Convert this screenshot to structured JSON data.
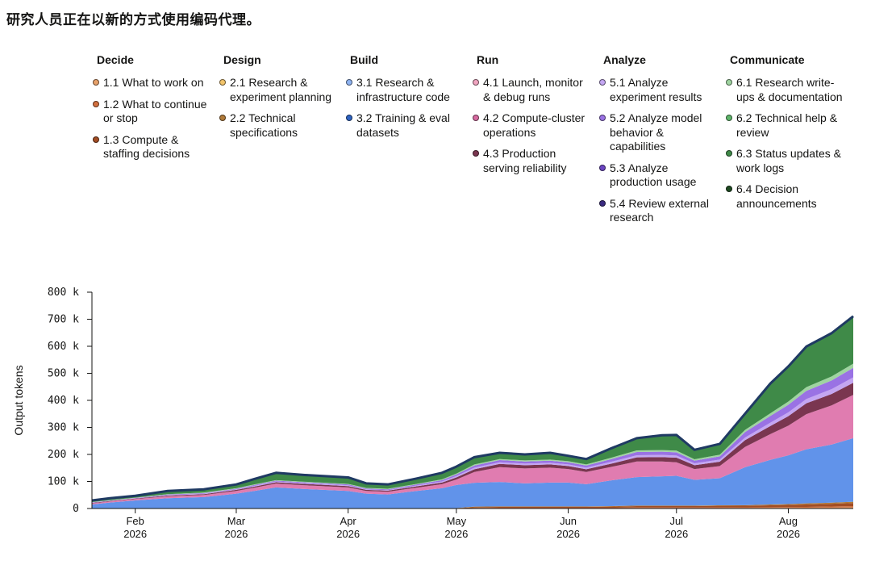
{
  "title": "研究人员正在以新的方式使用编码代理。",
  "legend": {
    "columns": [
      {
        "heading": "Decide",
        "items": [
          {
            "label": "1.1 What to work on",
            "color": "#e7a16a"
          },
          {
            "label": "1.2 What to continue or stop",
            "color": "#d2703f"
          },
          {
            "label": "1.3 Compute & staffing decisions",
            "color": "#a24d24"
          }
        ]
      },
      {
        "heading": "Design",
        "items": [
          {
            "label": "2.1 Research & experiment planning",
            "color": "#f2c46a"
          },
          {
            "label": "2.2 Technical specifications",
            "color": "#b07a3a"
          }
        ]
      },
      {
        "heading": "Build",
        "items": [
          {
            "label": "3.1 Research & infrastructure code",
            "color": "#8fb4f2"
          },
          {
            "label": "3.2 Training & eval datasets",
            "color": "#2e63c2"
          }
        ]
      },
      {
        "heading": "Run",
        "items": [
          {
            "label": "4.1 Launch, monitor & debug runs",
            "color": "#f0a5c0"
          },
          {
            "label": "4.2 Compute-cluster operations",
            "color": "#d76aa0"
          },
          {
            "label": "4.3 Production serving reliability",
            "color": "#7a3650"
          }
        ]
      },
      {
        "heading": "Analyze",
        "items": [
          {
            "label": "5.1 Analyze experiment results",
            "color": "#c4a6f2"
          },
          {
            "label": "5.2 Analyze model behavior & capabilities",
            "color": "#9a72e4"
          },
          {
            "label": "5.3 Analyze production usage",
            "color": "#6b45c2"
          },
          {
            "label": "5.4 Review external research",
            "color": "#3a2a80"
          }
        ]
      },
      {
        "heading": "Communicate",
        "items": [
          {
            "label": "6.1 Research write-ups & documentation",
            "color": "#9fd4a0"
          },
          {
            "label": "6.2 Technical help & review",
            "color": "#5fb56a"
          },
          {
            "label": "6.3 Status updates & work logs",
            "color": "#3f8a48"
          },
          {
            "label": "6.4 Decision announcements",
            "color": "#1f4a22"
          }
        ]
      }
    ]
  },
  "chart_data": {
    "type": "area",
    "stacked": true,
    "ylabel": "Output tokens",
    "xlabel": "",
    "ylim": [
      0,
      800000
    ],
    "yticks": [
      {
        "value": 0,
        "label": "0"
      },
      {
        "value": 100000,
        "label": "100 k"
      },
      {
        "value": 200000,
        "label": "200 k"
      },
      {
        "value": 300000,
        "label": "300 k"
      },
      {
        "value": 400000,
        "label": "400 k"
      },
      {
        "value": 500000,
        "label": "500 k"
      },
      {
        "value": 600000,
        "label": "600 k"
      },
      {
        "value": 700000,
        "label": "700 k"
      },
      {
        "value": 800000,
        "label": "800 k"
      }
    ],
    "xrange": [
      "2026-01-20",
      "2026-08-19"
    ],
    "xticks": [
      {
        "date": "2026-02-01",
        "month": "Feb",
        "year": "2026"
      },
      {
        "date": "2026-03-01",
        "month": "Mar",
        "year": "2026"
      },
      {
        "date": "2026-04-01",
        "month": "Apr",
        "year": "2026"
      },
      {
        "date": "2026-05-01",
        "month": "May",
        "year": "2026"
      },
      {
        "date": "2026-06-01",
        "month": "Jun",
        "year": "2026"
      },
      {
        "date": "2026-07-01",
        "month": "Jul",
        "year": "2026"
      },
      {
        "date": "2026-08-01",
        "month": "Aug",
        "year": "2026"
      }
    ],
    "outline_color": "#1f3a63",
    "x": [
      "2026-01-20",
      "2026-01-25",
      "2026-02-01",
      "2026-02-10",
      "2026-02-20",
      "2026-03-01",
      "2026-03-06",
      "2026-03-12",
      "2026-03-20",
      "2026-04-01",
      "2026-04-06",
      "2026-04-12",
      "2026-04-20",
      "2026-04-27",
      "2026-05-01",
      "2026-05-06",
      "2026-05-13",
      "2026-05-20",
      "2026-05-27",
      "2026-06-01",
      "2026-06-06",
      "2026-06-13",
      "2026-06-20",
      "2026-06-27",
      "2026-07-01",
      "2026-07-06",
      "2026-07-13",
      "2026-07-20",
      "2026-07-27",
      "2026-08-01",
      "2026-08-06",
      "2026-08-13",
      "2026-08-19"
    ],
    "series": [
      {
        "name": "1.1 What to work on",
        "color": "#e7a16a",
        "values": [
          0,
          0,
          0,
          0,
          0,
          0,
          0,
          0,
          0,
          0,
          0,
          0,
          0,
          0,
          0,
          1000,
          1500,
          1500,
          1500,
          1500,
          1500,
          1500,
          2000,
          2000,
          2000,
          2000,
          2000,
          2500,
          2500,
          2500,
          3000,
          3500,
          4000
        ]
      },
      {
        "name": "1.2 What to continue or stop",
        "color": "#d2703f",
        "values": [
          0,
          0,
          0,
          0,
          0,
          0,
          0,
          0,
          0,
          0,
          0,
          0,
          0,
          0,
          0,
          1000,
          1500,
          1500,
          1500,
          1500,
          1500,
          1500,
          2000,
          2000,
          2000,
          2000,
          2000,
          2000,
          2500,
          3000,
          3000,
          4000,
          5000
        ]
      },
      {
        "name": "1.3 Compute & staffing decisions",
        "color": "#a24d24",
        "values": [
          0,
          0,
          0,
          0,
          0,
          0,
          0,
          0,
          0,
          0,
          0,
          0,
          0,
          0,
          1000,
          3000,
          3000,
          3000,
          3000,
          3000,
          3000,
          4000,
          5000,
          5000,
          5000,
          5000,
          6000,
          6000,
          7000,
          8000,
          9000,
          10000,
          11000
        ]
      },
      {
        "name": "2.1 Research & experiment planning",
        "color": "#f2c46a",
        "values": [
          0,
          0,
          0,
          0,
          0,
          0,
          0,
          0,
          0,
          0,
          0,
          0,
          0,
          0,
          0,
          0,
          0,
          0,
          0,
          0,
          0,
          0,
          0,
          0,
          0,
          0,
          0,
          0,
          0,
          0,
          0,
          0,
          0
        ]
      },
      {
        "name": "2.2 Technical specifications",
        "color": "#b07a3a",
        "values": [
          0,
          0,
          0,
          0,
          0,
          0,
          0,
          0,
          0,
          0,
          0,
          0,
          0,
          0,
          1000,
          2000,
          2000,
          2000,
          2000,
          2000,
          2000,
          2000,
          2000,
          2000,
          2000,
          2000,
          2000,
          2000,
          3000,
          3000,
          4000,
          4000,
          5000
        ]
      },
      {
        "name": "3.1 Research & infrastructure code",
        "color": "#6193ea",
        "values": [
          15000,
          22000,
          30000,
          38000,
          42000,
          55000,
          65000,
          78000,
          72000,
          65000,
          55000,
          52000,
          65000,
          75000,
          85000,
          88000,
          90000,
          85000,
          88000,
          88000,
          82000,
          95000,
          105000,
          108000,
          110000,
          95000,
          100000,
          140000,
          165000,
          180000,
          200000,
          215000,
          235000
        ]
      },
      {
        "name": "3.2 Training & eval datasets",
        "color": "#2e63c2",
        "values": [
          0,
          0,
          0,
          0,
          0,
          0,
          0,
          0,
          0,
          0,
          0,
          0,
          0,
          0,
          0,
          0,
          0,
          0,
          0,
          0,
          0,
          0,
          0,
          0,
          0,
          0,
          0,
          0,
          0,
          0,
          0,
          0,
          0
        ]
      },
      {
        "name": "4.1 Launch, monitor & debug runs",
        "color": "#f0a5c0",
        "values": [
          0,
          0,
          0,
          0,
          0,
          0,
          0,
          0,
          0,
          0,
          0,
          0,
          0,
          0,
          0,
          0,
          0,
          0,
          0,
          0,
          0,
          0,
          0,
          0,
          0,
          0,
          0,
          0,
          0,
          0,
          0,
          0,
          0
        ]
      },
      {
        "name": "4.2 Compute-cluster operations",
        "color": "#e07cb0",
        "values": [
          4000,
          4000,
          5000,
          7000,
          8000,
          10000,
          12000,
          14000,
          14000,
          13000,
          10000,
          10000,
          12000,
          15000,
          20000,
          40000,
          55000,
          55000,
          55000,
          50000,
          45000,
          50000,
          58000,
          55000,
          50000,
          40000,
          45000,
          75000,
          95000,
          110000,
          130000,
          145000,
          160000
        ]
      },
      {
        "name": "4.3 Production serving reliability",
        "color": "#7a3650",
        "values": [
          2000,
          2000,
          2000,
          3000,
          3000,
          4000,
          4000,
          5000,
          5000,
          5000,
          4000,
          4000,
          5000,
          6000,
          8000,
          10000,
          12000,
          12000,
          12000,
          11000,
          10000,
          12000,
          15000,
          16000,
          17000,
          14000,
          16000,
          25000,
          30000,
          35000,
          40000,
          42000,
          45000
        ]
      },
      {
        "name": "5.1 Analyze experiment results",
        "color": "#c4a6f2",
        "values": [
          1000,
          1000,
          1000,
          2000,
          2000,
          2000,
          3000,
          3000,
          3000,
          3000,
          2000,
          2000,
          3000,
          4000,
          5000,
          6000,
          6000,
          6000,
          6000,
          6000,
          6000,
          7000,
          8000,
          8000,
          8000,
          7000,
          8000,
          10000,
          12000,
          14000,
          16000,
          18000,
          20000
        ]
      },
      {
        "name": "5.2 Analyze model behavior & capabilities",
        "color": "#9a72e4",
        "values": [
          1000,
          1000,
          1000,
          2000,
          2000,
          2000,
          3000,
          3000,
          3000,
          3000,
          3000,
          3000,
          4000,
          5000,
          6000,
          8000,
          8000,
          8000,
          8000,
          8000,
          8000,
          10000,
          12000,
          12000,
          12000,
          10000,
          12000,
          20000,
          25000,
          28000,
          30000,
          32000,
          35000
        ]
      },
      {
        "name": "5.3 Analyze production usage",
        "color": "#6b45c2",
        "values": [
          0,
          0,
          0,
          0,
          0,
          0,
          0,
          0,
          0,
          0,
          0,
          0,
          0,
          0,
          0,
          0,
          0,
          0,
          0,
          0,
          0,
          0,
          0,
          0,
          0,
          0,
          0,
          0,
          0,
          0,
          0,
          0,
          0
        ]
      },
      {
        "name": "5.4 Review external research",
        "color": "#3a2a80",
        "values": [
          0,
          0,
          0,
          0,
          0,
          0,
          0,
          0,
          0,
          0,
          0,
          0,
          0,
          0,
          0,
          0,
          0,
          0,
          0,
          0,
          0,
          0,
          0,
          0,
          0,
          0,
          0,
          0,
          0,
          0,
          0,
          0,
          0
        ]
      },
      {
        "name": "6.1 Research write-ups & documentation",
        "color": "#9fd4a0",
        "values": [
          1000,
          1000,
          1000,
          1000,
          2000,
          2000,
          2000,
          2000,
          2000,
          2000,
          2000,
          2000,
          2000,
          3000,
          3000,
          4000,
          4000,
          4000,
          4000,
          4000,
          4000,
          5000,
          6000,
          6000,
          6000,
          5000,
          6000,
          8000,
          10000,
          12000,
          14000,
          15000,
          16000
        ]
      },
      {
        "name": "6.2 Technical help & review",
        "color": "#5fb56a",
        "values": [
          0,
          0,
          0,
          0,
          0,
          0,
          0,
          0,
          0,
          0,
          0,
          0,
          0,
          0,
          0,
          0,
          0,
          0,
          0,
          0,
          0,
          0,
          0,
          0,
          0,
          0,
          0,
          0,
          0,
          0,
          0,
          0,
          0
        ]
      },
      {
        "name": "6.3 Status updates & work logs",
        "color": "#3f8a48",
        "values": [
          6000,
          7000,
          7000,
          12000,
          12000,
          14000,
          20000,
          27000,
          25000,
          24000,
          17000,
          16000,
          20000,
          24000,
          26000,
          27000,
          23000,
          22000,
          25000,
          20000,
          20000,
          35000,
          45000,
          55000,
          58000,
          35000,
          40000,
          60000,
          110000,
          130000,
          150000,
          160000,
          175000
        ]
      },
      {
        "name": "6.4 Decision announcements",
        "color": "#1f4a22",
        "values": [
          0,
          0,
          0,
          0,
          0,
          0,
          0,
          0,
          0,
          0,
          0,
          0,
          0,
          0,
          0,
          0,
          0,
          0,
          0,
          0,
          0,
          0,
          0,
          0,
          0,
          0,
          0,
          0,
          0,
          0,
          0,
          0,
          0
        ]
      }
    ]
  }
}
